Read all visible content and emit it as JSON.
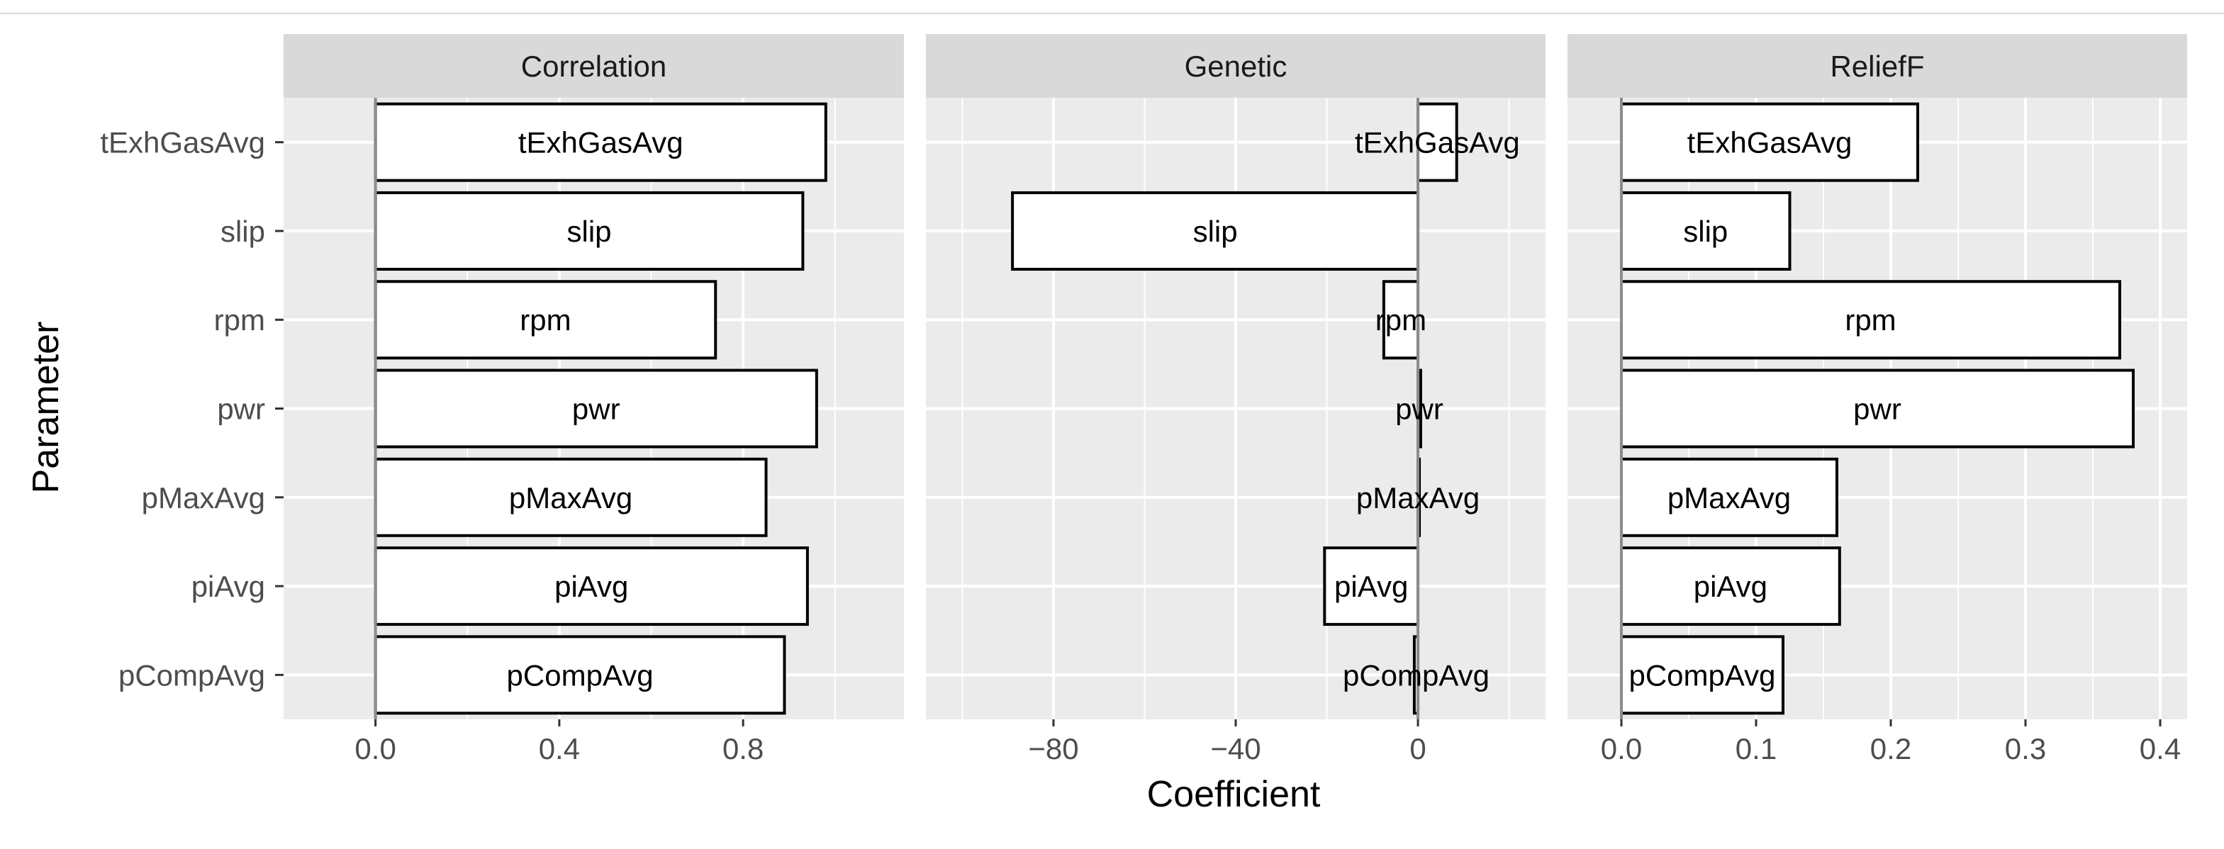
{
  "chart_data": {
    "type": "bar",
    "orientation": "horizontal",
    "xlabel": "Coefficient",
    "ylabel": "Parameter",
    "categories": [
      "tExhGasAvg",
      "slip",
      "rpm",
      "pwr",
      "pMaxAvg",
      "piAvg",
      "pCompAvg"
    ],
    "panels": [
      {
        "name": "Correlation",
        "xlim": [
          -0.2,
          1.15
        ],
        "ticks": [
          0.0,
          0.4,
          0.8
        ],
        "tick_labels": [
          "0.0",
          "0.4",
          "0.8"
        ],
        "values": [
          0.98,
          0.93,
          0.74,
          0.96,
          0.85,
          0.94,
          0.89
        ]
      },
      {
        "name": "Genetic",
        "xlim": [
          -108,
          28
        ],
        "ticks": [
          -80,
          -40,
          0
        ],
        "tick_labels": [
          "−80",
          "−40",
          "0"
        ],
        "values": [
          8.5,
          -89,
          -7.5,
          0.6,
          0,
          -20.5,
          -0.8
        ]
      },
      {
        "name": "ReliefF",
        "xlim": [
          -0.04,
          0.42
        ],
        "ticks": [
          0.0,
          0.1,
          0.2,
          0.3,
          0.4
        ],
        "tick_labels": [
          "0.0",
          "0.1",
          "0.2",
          "0.3",
          "0.4"
        ],
        "values": [
          0.22,
          0.125,
          0.37,
          0.38,
          0.16,
          0.162,
          0.12
        ]
      }
    ]
  }
}
